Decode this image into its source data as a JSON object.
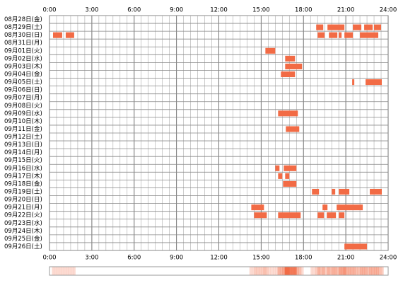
{
  "chart_data": {
    "type": "timeline",
    "color": "#f26b45",
    "xlim": [
      0,
      24
    ],
    "xticks": [
      {
        "value": 0,
        "label": "0:00"
      },
      {
        "value": 3,
        "label": "3:00"
      },
      {
        "value": 6,
        "label": "6:00"
      },
      {
        "value": 9,
        "label": "9:00"
      },
      {
        "value": 12,
        "label": "12:00"
      },
      {
        "value": 15,
        "label": "15:00"
      },
      {
        "value": 18,
        "label": "18:00"
      },
      {
        "value": 21,
        "label": "21:00"
      },
      {
        "value": 24,
        "label": "24:00"
      }
    ],
    "categories": [
      "08月28日(金)",
      "08月29日(土)",
      "08月30日(日)",
      "08月31日(月)",
      "09月01日(火)",
      "09月02日(水)",
      "09月03日(木)",
      "09月04日(金)",
      "09月05日(土)",
      "09月06日(日)",
      "09月07日(月)",
      "09月08日(火)",
      "09月09日(水)",
      "09月10日(木)",
      "09月11日(金)",
      "09月12日(土)",
      "09月13日(日)",
      "09月14日(月)",
      "09月15日(火)",
      "09月16日(水)",
      "09月17日(木)",
      "09月18日(金)",
      "09月19日(土)",
      "09月20日(日)",
      "09月21日(月)",
      "09月22日(火)",
      "09月23日(水)",
      "09月24日(木)",
      "09月25日(金)",
      "09月26日(土)"
    ],
    "values": [
      [],
      [
        [
          18.9,
          19.4
        ],
        [
          19.7,
          20.9
        ],
        [
          21.5,
          22.1
        ],
        [
          22.3,
          22.9
        ],
        [
          23.0,
          23.5
        ]
      ],
      [
        [
          0.25,
          0.9
        ],
        [
          1.15,
          1.75
        ],
        [
          19.0,
          19.5
        ],
        [
          19.8,
          20.4
        ],
        [
          20.5,
          20.7
        ],
        [
          20.9,
          21.5
        ],
        [
          22.0,
          23.3
        ]
      ],
      [],
      [
        [
          15.3,
          16.0
        ]
      ],
      [
        [
          16.7,
          17.4
        ]
      ],
      [
        [
          16.7,
          17.9
        ]
      ],
      [
        [
          16.4,
          17.4
        ]
      ],
      [
        [
          21.45,
          21.6
        ],
        [
          22.4,
          23.55
        ]
      ],
      [],
      [],
      [],
      [
        [
          16.2,
          17.6
        ]
      ],
      [],
      [
        [
          16.75,
          17.7
        ]
      ],
      [],
      [],
      [],
      [],
      [
        [
          16.0,
          16.3
        ],
        [
          16.6,
          17.5
        ]
      ],
      [
        [
          16.2,
          16.5
        ],
        [
          16.7,
          17.0
        ]
      ],
      [
        [
          16.55,
          17.5
        ]
      ],
      [
        [
          18.6,
          19.1
        ],
        [
          20.0,
          20.25
        ],
        [
          20.5,
          21.25
        ],
        [
          22.7,
          23.55
        ]
      ],
      [],
      [
        [
          14.3,
          15.2
        ],
        [
          19.35,
          19.7
        ],
        [
          20.35,
          22.2
        ]
      ],
      [
        [
          14.5,
          15.4
        ],
        [
          16.2,
          17.8
        ],
        [
          19.0,
          19.45
        ],
        [
          19.65,
          20.3
        ],
        [
          20.5,
          20.9
        ]
      ],
      [],
      [],
      [],
      [
        [
          20.9,
          22.5
        ]
      ]
    ]
  }
}
